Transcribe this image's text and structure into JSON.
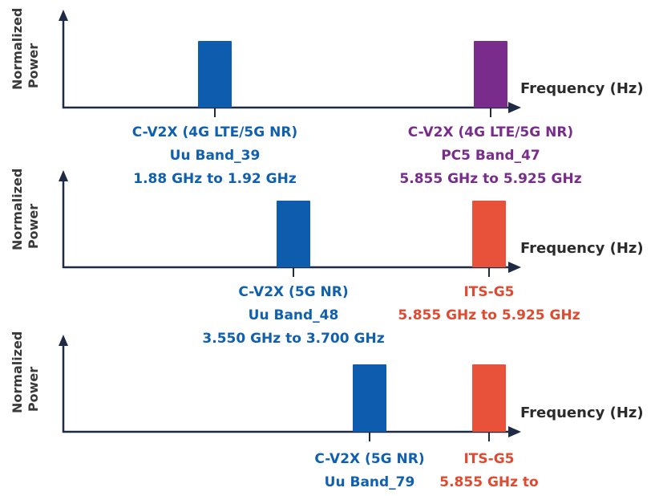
{
  "y_axis_label_line1": "Normalized",
  "y_axis_label_line2": "Power",
  "x_axis_label": "Frequency (Hz)",
  "colors": {
    "uu_band": "#0d5cad",
    "pc5_band": "#7a2c8c",
    "its_g5": "#e8523a",
    "axis": "#1f2a44"
  },
  "panels": [
    {
      "left_band": {
        "line1": "C-V2X (4G LTE/5G NR)",
        "line2": "Uu Band_39",
        "line3": "1.88 GHz to 1.92 GHz"
      },
      "right_band": {
        "line1": "C-V2X (4G LTE/5G NR)",
        "line2": "PC5 Band_47",
        "line3": "5.855 GHz to 5.925 GHz"
      }
    },
    {
      "left_band": {
        "line1": "C-V2X (5G NR)",
        "line2": "Uu Band_48",
        "line3": "3.550 GHz to 3.700 GHz"
      },
      "right_band": {
        "line1": "ITS-G5",
        "line2": "5.855 GHz to 5.925 GHz"
      }
    },
    {
      "left_band": {
        "line1": "C-V2X (5G NR)",
        "line2": "Uu Band_79"
      },
      "right_band": {
        "line1": "ITS-G5",
        "line2": "5.855 GHz to"
      }
    }
  ]
}
